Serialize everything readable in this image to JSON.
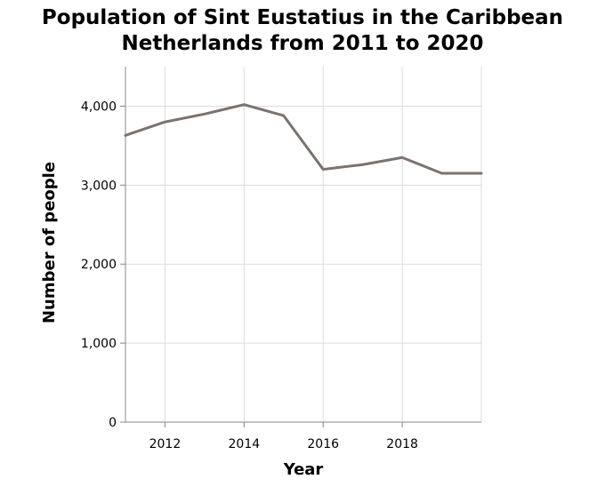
{
  "chart_data": {
    "type": "line",
    "title_lines": [
      "Population of Sint Eustatius in the Caribbean",
      "Netherlands from 2011 to 2020"
    ],
    "xlabel": "Year",
    "ylabel": "Number of people",
    "x": [
      2011,
      2012,
      2013,
      2014,
      2015,
      2016,
      2017,
      2018,
      2019,
      2020
    ],
    "series": [
      {
        "values": [
          3630,
          3800,
          3900,
          4020,
          3880,
          3200,
          3260,
          3350,
          3150,
          3150
        ],
        "color": "#7a7370"
      }
    ],
    "xlim": [
      2011,
      2020
    ],
    "ylim": [
      0,
      4500
    ],
    "x_ticks": [
      2012,
      2014,
      2016,
      2018
    ],
    "x_tick_labels": [
      "2012",
      "2014",
      "2016",
      "2018"
    ],
    "y_ticks": [
      0,
      1000,
      2000,
      3000,
      4000
    ],
    "y_tick_labels": [
      "0",
      "1,000",
      "2,000",
      "3,000",
      "4,000"
    ],
    "grid": true,
    "grid_color": "#dcdcdc",
    "axis_color": "#888888"
  }
}
